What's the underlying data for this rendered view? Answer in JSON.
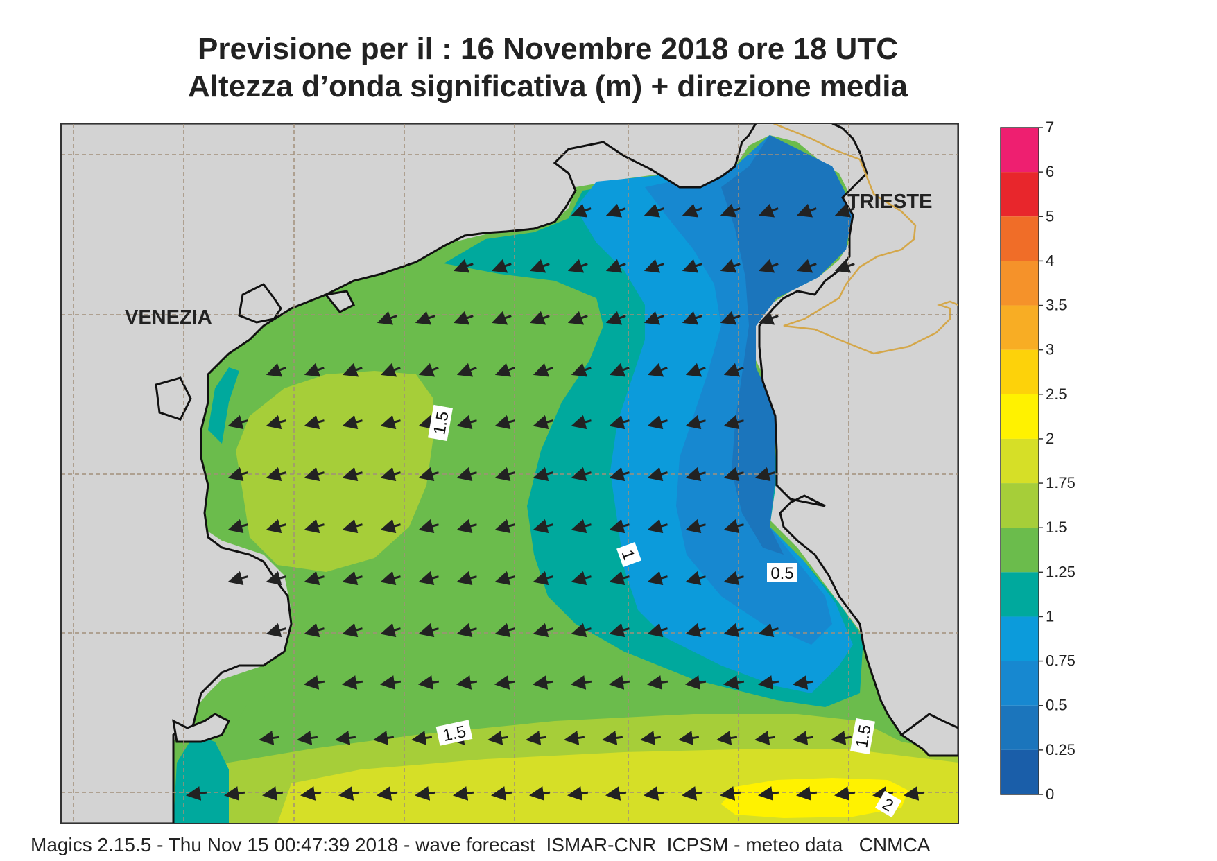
{
  "header": {
    "title_line1": "Previsione per il  :  16 Novembre  2018   ore 18 UTC",
    "title_line2": "Altezza d’onda significativa (m) + direzione media"
  },
  "map": {
    "region": "Northern Adriatic Sea",
    "cities": [
      {
        "name": "VENEZIA"
      },
      {
        "name": "TRIESTE"
      }
    ],
    "contour_labels": [
      "1.5",
      "1",
      "0.5",
      "1.5",
      "1.5",
      "2"
    ],
    "arrow_direction": "toward west-southwest",
    "colors": {
      "land": "#d3d3d3",
      "border": "#d4a74a"
    }
  },
  "colorbar": {
    "ticks": [
      "7",
      "6",
      "5",
      "4",
      "3.5",
      "3",
      "2.5",
      "2",
      "1.75",
      "1.5",
      "1.25",
      "1",
      "0.75",
      "0.5",
      "0.25",
      "0"
    ],
    "bands": [
      {
        "from": "6",
        "to": "7",
        "color": "#ee1f70"
      },
      {
        "from": "5",
        "to": "6",
        "color": "#e8262c"
      },
      {
        "from": "4",
        "to": "5",
        "color": "#f06d28"
      },
      {
        "from": "3.5",
        "to": "4",
        "color": "#f5922a"
      },
      {
        "from": "3",
        "to": "3.5",
        "color": "#f8ad24"
      },
      {
        "from": "2.5",
        "to": "3",
        "color": "#fdd20a"
      },
      {
        "from": "2",
        "to": "2.5",
        "color": "#fff200"
      },
      {
        "from": "1.75",
        "to": "2",
        "color": "#d6df27"
      },
      {
        "from": "1.5",
        "to": "1.75",
        "color": "#a6ce39"
      },
      {
        "from": "1.25",
        "to": "1.5",
        "color": "#6bbc4c"
      },
      {
        "from": "1",
        "to": "1.25",
        "color": "#00a99d"
      },
      {
        "from": "0.75",
        "to": "1",
        "color": "#0c9bdb"
      },
      {
        "from": "0.5",
        "to": "0.75",
        "color": "#1788d0"
      },
      {
        "from": "0.25",
        "to": "0.5",
        "color": "#1b75bc"
      },
      {
        "from": "0",
        "to": "0.25",
        "color": "#1a5ea9"
      }
    ]
  },
  "footer": {
    "text": "Magics 2.15.5 - Thu Nov 15 00:47:39 2018 - wave forecast  ISMAR-CNR  ICPSM - meteo data   CNMCA"
  }
}
